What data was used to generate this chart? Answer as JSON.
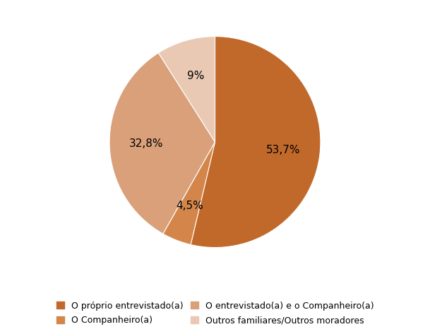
{
  "labels": [
    "O próprio entrevistado(a)",
    "O Companheiro(a)",
    "O entrevistado(a) e o Companheiro(a)",
    "Outros familiares/Outros moradores"
  ],
  "values": [
    53.7,
    4.5,
    32.8,
    9.0
  ],
  "colors": [
    "#c1692a",
    "#d4864a",
    "#d9a07a",
    "#eac9b4"
  ],
  "autopct_labels": [
    "53,7%",
    "4,5%",
    "32,8%",
    "9%"
  ],
  "startangle": 90,
  "background_color": "#ffffff",
  "text_fontsize": 11,
  "legend_fontsize": 9,
  "legend_order": [
    0,
    1,
    2,
    3
  ]
}
